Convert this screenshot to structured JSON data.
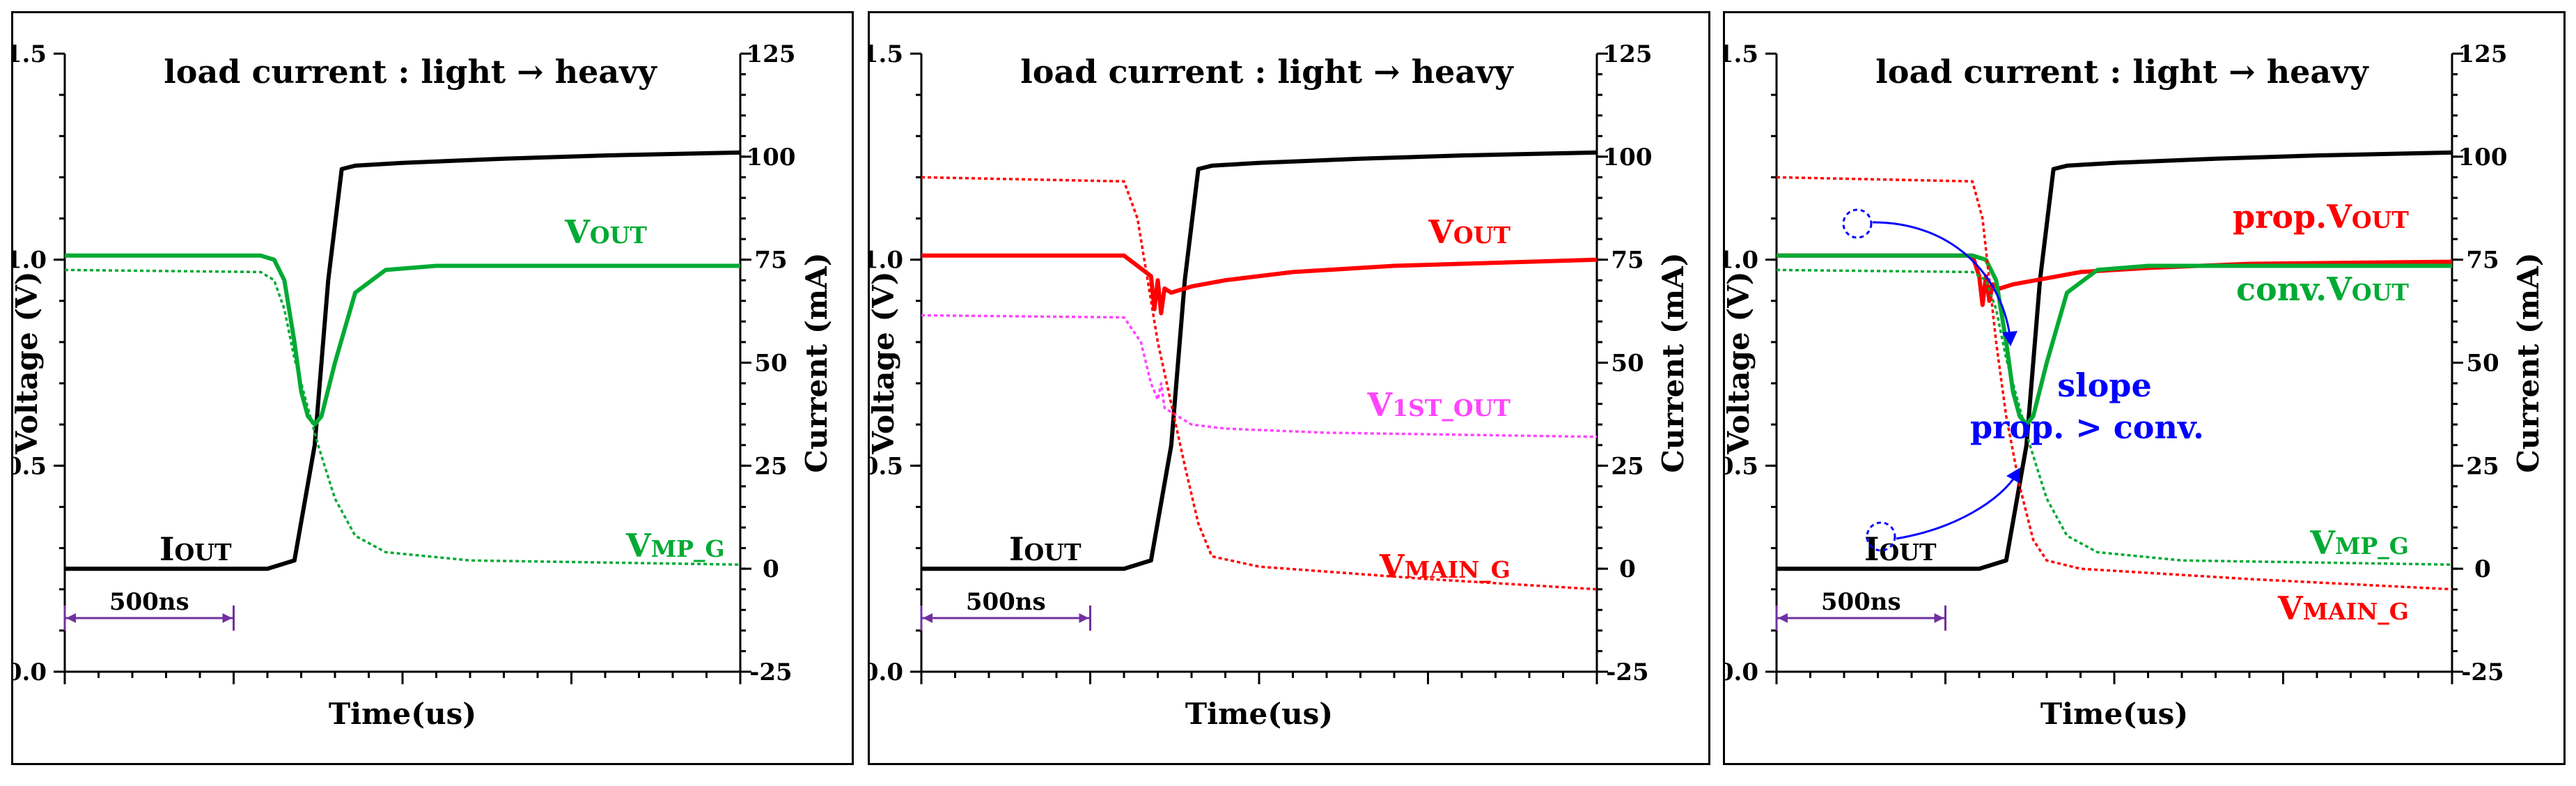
{
  "scale_bar": {
    "label": "500ns",
    "color": "#7030a0"
  },
  "chart_data": [
    {
      "type": "line",
      "title": "load current : light → heavy",
      "xlabel": "Time(us)",
      "ylabel": "Voltage (V)",
      "y2label": "Current (mA)",
      "ylim": [
        0.0,
        1.5
      ],
      "y2lim": [
        -25,
        125
      ],
      "yticks": [
        "0.0",
        "0.5",
        "1.0",
        "1.5"
      ],
      "y2ticks": [
        "-25",
        "0",
        "25",
        "50",
        "75",
        "100",
        "125"
      ],
      "xlim": [
        0,
        2.0
      ],
      "series": [
        {
          "name": "IOUT",
          "label": "IOUT",
          "axis": "y2",
          "color": "#000000",
          "style": "solid",
          "x": [
            0,
            0.6,
            0.68,
            0.74,
            0.78,
            0.82,
            0.86,
            1.0,
            1.3,
            1.6,
            2.0
          ],
          "y": [
            0,
            0,
            2,
            30,
            70,
            97,
            97.8,
            98.5,
            99.5,
            100.3,
            101
          ]
        },
        {
          "name": "VOUT",
          "label": "VOUT",
          "axis": "y",
          "color": "#00aa33",
          "style": "solid",
          "x": [
            0,
            0.58,
            0.62,
            0.65,
            0.68,
            0.7,
            0.72,
            0.74,
            0.76,
            0.8,
            0.86,
            0.95,
            1.1,
            1.4,
            2.0
          ],
          "y": [
            1.01,
            1.01,
            1.0,
            0.95,
            0.8,
            0.68,
            0.62,
            0.6,
            0.62,
            0.75,
            0.92,
            0.975,
            0.985,
            0.985,
            0.985
          ]
        },
        {
          "name": "VMP_G",
          "label": "VMP_G",
          "axis": "y",
          "color": "#00aa33",
          "style": "dotted",
          "x": [
            0,
            0.58,
            0.62,
            0.65,
            0.68,
            0.72,
            0.75,
            0.8,
            0.86,
            0.95,
            1.2,
            2.0
          ],
          "y": [
            0.975,
            0.97,
            0.95,
            0.88,
            0.76,
            0.64,
            0.55,
            0.42,
            0.33,
            0.29,
            0.27,
            0.26
          ]
        }
      ],
      "annotations": []
    },
    {
      "type": "line",
      "title": "load current : light → heavy",
      "xlabel": "Time(us)",
      "ylabel": "Voltage (V)",
      "y2label": "Current (mA)",
      "ylim": [
        0.0,
        1.5
      ],
      "y2lim": [
        -25,
        125
      ],
      "yticks": [
        "0.0",
        "0.5",
        "1.0",
        "1.5"
      ],
      "y2ticks": [
        "-25",
        "0",
        "25",
        "50",
        "75",
        "100",
        "125"
      ],
      "xlim": [
        0,
        2.0
      ],
      "series": [
        {
          "name": "IOUT",
          "label": "IOUT",
          "axis": "y2",
          "color": "#000000",
          "style": "solid",
          "x": [
            0,
            0.6,
            0.68,
            0.74,
            0.78,
            0.82,
            0.86,
            1.0,
            1.3,
            1.6,
            2.0
          ],
          "y": [
            0,
            0,
            2,
            30,
            70,
            97,
            97.8,
            98.5,
            99.5,
            100.3,
            101
          ]
        },
        {
          "name": "VOUT",
          "label": "VOUT",
          "axis": "y",
          "color": "#ff0000",
          "style": "solid",
          "x": [
            0,
            0.6,
            0.68,
            0.69,
            0.7,
            0.71,
            0.72,
            0.74,
            0.8,
            0.9,
            1.1,
            1.4,
            2.0
          ],
          "y": [
            1.01,
            1.01,
            0.96,
            0.88,
            0.95,
            0.87,
            0.93,
            0.92,
            0.935,
            0.95,
            0.97,
            0.985,
            1.0
          ]
        },
        {
          "name": "V1ST_OUT",
          "label": "V1ST_OUT",
          "axis": "y",
          "color": "#ff44ff",
          "style": "dotted",
          "x": [
            0,
            0.6,
            0.65,
            0.68,
            0.7,
            0.71,
            0.72,
            0.74,
            0.8,
            0.9,
            1.2,
            2.0
          ],
          "y": [
            0.865,
            0.86,
            0.8,
            0.7,
            0.66,
            0.7,
            0.64,
            0.63,
            0.6,
            0.59,
            0.58,
            0.57
          ]
        },
        {
          "name": "VMAIN_G",
          "label": "VMAIN_G",
          "axis": "y",
          "color": "#ff0000",
          "style": "dotted",
          "x": [
            0,
            0.6,
            0.64,
            0.67,
            0.7,
            0.74,
            0.78,
            0.82,
            0.86,
            1.0,
            1.5,
            2.0
          ],
          "y": [
            1.2,
            1.19,
            1.1,
            0.95,
            0.8,
            0.65,
            0.5,
            0.36,
            0.28,
            0.255,
            0.225,
            0.2
          ]
        }
      ],
      "annotations": []
    },
    {
      "type": "line",
      "title": "load current : light → heavy",
      "xlabel": "Time(us)",
      "ylabel": "Voltage (V)",
      "y2label": "Current (mA)",
      "ylim": [
        0.0,
        1.5
      ],
      "y2lim": [
        -25,
        125
      ],
      "yticks": [
        "0.0",
        "0.5",
        "1.0",
        "1.5"
      ],
      "y2ticks": [
        "-25",
        "0",
        "25",
        "50",
        "75",
        "100",
        "125"
      ],
      "xlim": [
        0,
        2.0
      ],
      "series": [
        {
          "name": "IOUT",
          "label": "IOUT",
          "axis": "y2",
          "color": "#000000",
          "style": "solid",
          "x": [
            0,
            0.6,
            0.68,
            0.74,
            0.78,
            0.82,
            0.86,
            1.0,
            1.3,
            1.6,
            2.0
          ],
          "y": [
            0,
            0,
            2,
            30,
            70,
            97,
            97.8,
            98.5,
            99.5,
            100.3,
            101
          ]
        },
        {
          "name": "prop.VOUT",
          "label": "prop.VOUT",
          "axis": "y",
          "color": "#ff0000",
          "style": "solid",
          "x": [
            0,
            0.58,
            0.6,
            0.61,
            0.62,
            0.63,
            0.64,
            0.66,
            0.7,
            0.8,
            0.9,
            1.1,
            1.4,
            2.0
          ],
          "y": [
            1.01,
            1.01,
            0.96,
            0.89,
            0.96,
            0.9,
            0.94,
            0.93,
            0.94,
            0.955,
            0.97,
            0.98,
            0.99,
            0.995
          ]
        },
        {
          "name": "conv.VOUT",
          "label": "conv.VOUT",
          "axis": "y",
          "color": "#00aa33",
          "style": "solid",
          "x": [
            0,
            0.58,
            0.62,
            0.65,
            0.68,
            0.7,
            0.72,
            0.74,
            0.76,
            0.8,
            0.86,
            0.95,
            1.1,
            1.4,
            2.0
          ],
          "y": [
            1.01,
            1.01,
            1.0,
            0.95,
            0.8,
            0.68,
            0.62,
            0.6,
            0.62,
            0.75,
            0.92,
            0.975,
            0.985,
            0.985,
            0.985
          ]
        },
        {
          "name": "VMP_G",
          "label": "VMP_G",
          "axis": "y",
          "color": "#00aa33",
          "style": "dotted",
          "x": [
            0,
            0.58,
            0.62,
            0.65,
            0.68,
            0.72,
            0.75,
            0.8,
            0.86,
            0.95,
            1.2,
            2.0
          ],
          "y": [
            0.975,
            0.97,
            0.95,
            0.88,
            0.76,
            0.64,
            0.55,
            0.42,
            0.33,
            0.29,
            0.27,
            0.26
          ]
        },
        {
          "name": "VMAIN_G",
          "label": "VMAIN_G",
          "axis": "y",
          "color": "#ff0000",
          "style": "dotted",
          "x": [
            0,
            0.58,
            0.61,
            0.63,
            0.65,
            0.68,
            0.72,
            0.76,
            0.8,
            0.9,
            1.4,
            2.0
          ],
          "y": [
            1.2,
            1.19,
            1.1,
            0.95,
            0.8,
            0.62,
            0.45,
            0.32,
            0.27,
            0.25,
            0.225,
            0.2
          ]
        }
      ],
      "annotations": [
        {
          "text": "slope",
          "color": "#0000ff"
        },
        {
          "text": "prop. > conv.",
          "color": "#0000ff"
        }
      ]
    }
  ]
}
